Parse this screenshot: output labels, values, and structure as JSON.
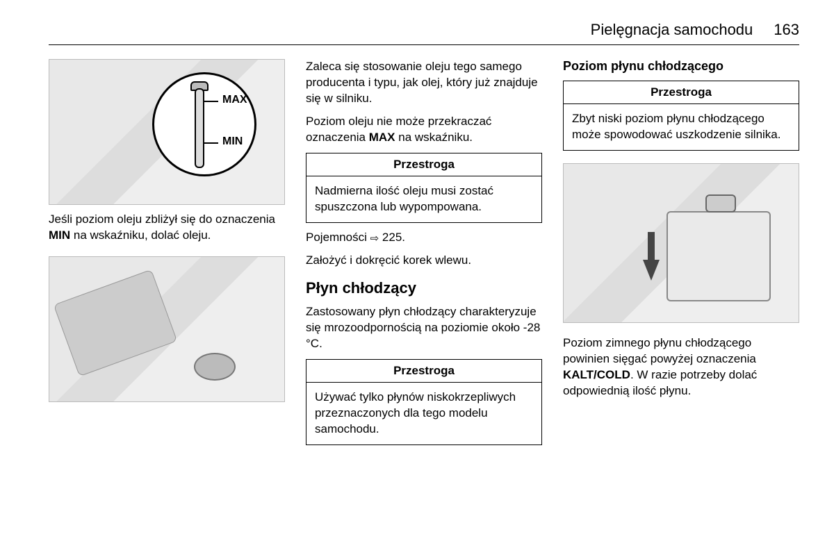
{
  "header": {
    "title": "Pielęgnacja samochodu",
    "page": "163"
  },
  "col1": {
    "img1": {
      "max": "MAX",
      "min": "MIN"
    },
    "p1_a": "Jeśli poziom oleju zbliżył się do oznaczenia ",
    "p1_min": "MIN",
    "p1_b": " na wskaźniku, dolać oleju."
  },
  "col2": {
    "p1": "Zaleca się stosowanie oleju tego samego producenta i typu, jak olej, który już znajduje się w silniku.",
    "p2_a": "Poziom oleju nie może przekraczać oznaczenia ",
    "p2_max": "MAX",
    "p2_b": " na wskaźniku.",
    "caution1": {
      "head": "Przestroga",
      "body": "Nadmierna ilość oleju musi zostać spuszczona lub wypompowana."
    },
    "p3_a": "Pojemności ",
    "p3_ref": "225",
    "p3_b": ".",
    "p4": "Założyć i dokręcić korek wlewu.",
    "h2": "Płyn chłodzący",
    "p5": "Zastosowany płyn chłodzący charakteryzuje się mrozoodpornością na poziomie około -28 °C.",
    "caution2": {
      "head": "Przestroga",
      "body": "Używać tylko płynów niskokrzepliwych przeznaczonych dla tego modelu samochodu."
    }
  },
  "col3": {
    "h3": "Poziom płynu chłodzącego",
    "caution": {
      "head": "Przestroga",
      "body": "Zbyt niski poziom płynu chłodzącego może spowodować uszkodzenie silnika."
    },
    "p1_a": "Poziom zimnego płynu chłodzącego powinien sięgać powyżej oznaczenia ",
    "p1_mark": "KALT/COLD",
    "p1_b": ". W razie potrzeby dolać odpowiednią ilość płynu."
  }
}
